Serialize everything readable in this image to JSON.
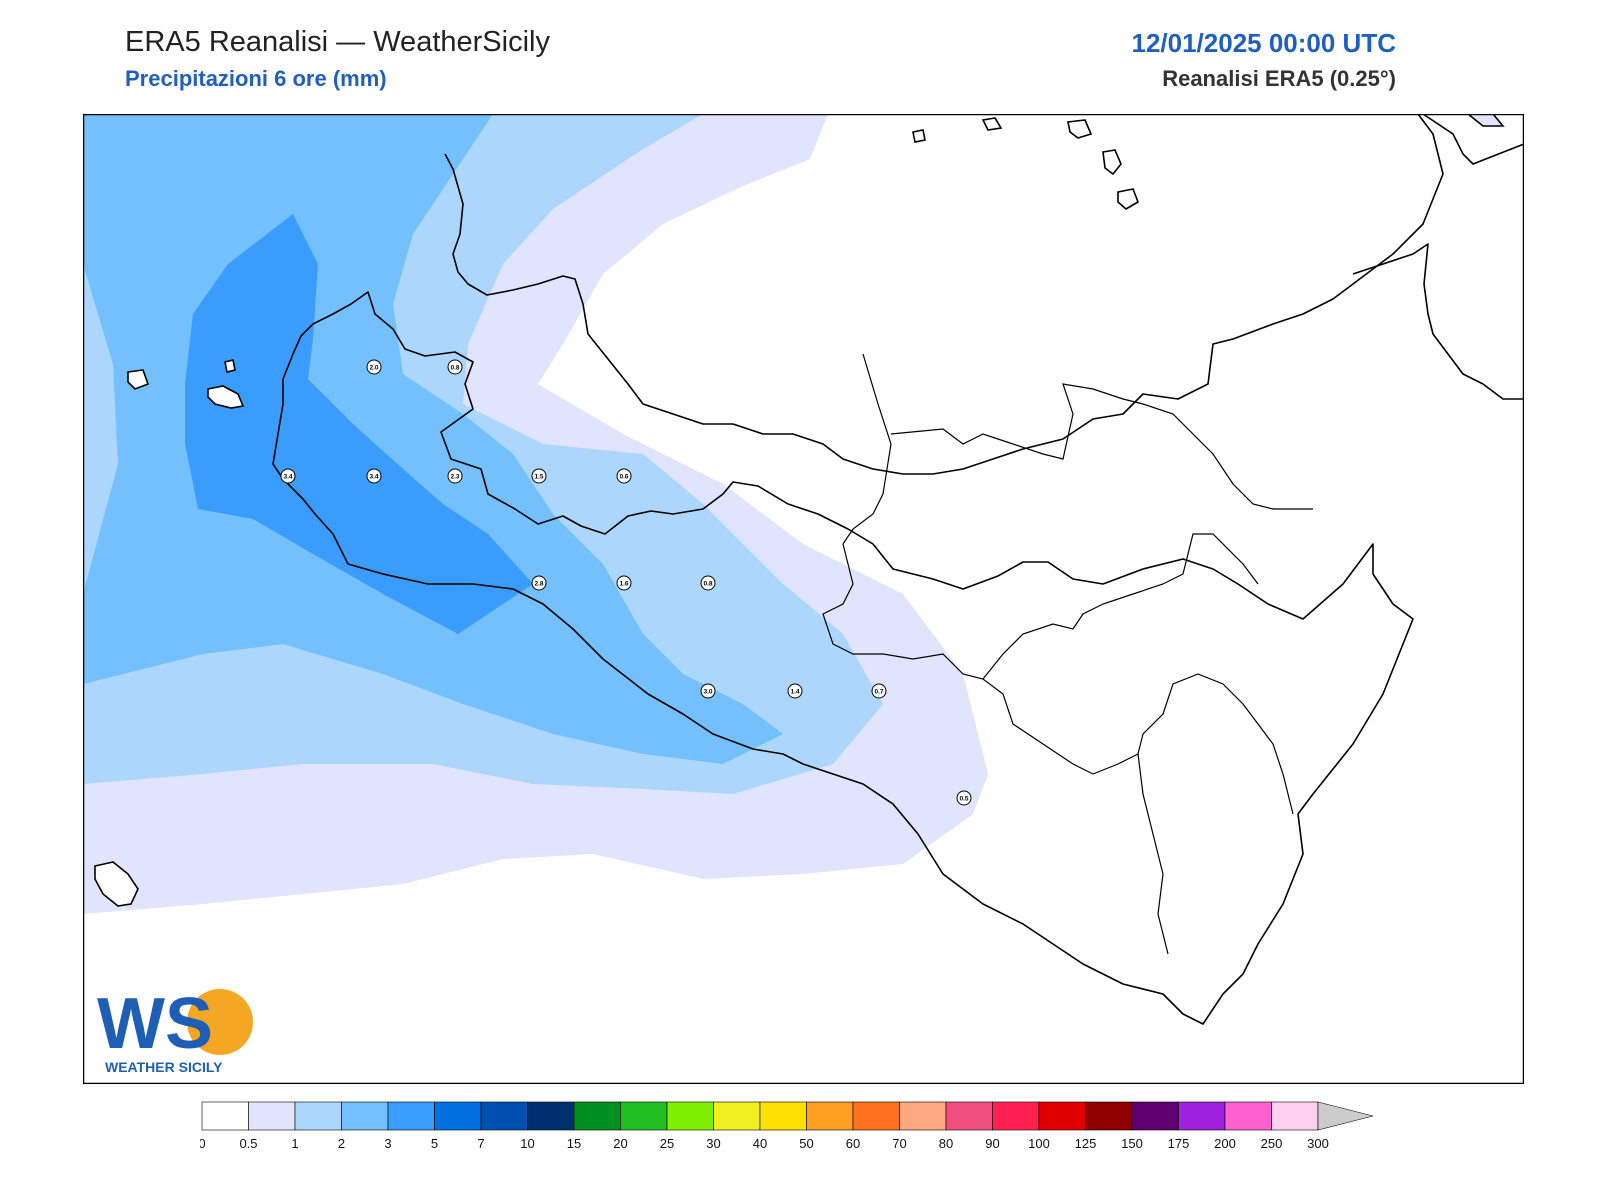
{
  "header": {
    "title": "ERA5 Reanalisi — WeatherSicily",
    "subtitle": "Precipitazioni 6 ore (mm)",
    "datetime": "12/01/2025 00:00 UTC",
    "source": "Reanalisi ERA5 (0.25°)"
  },
  "logo": {
    "text": "WEATHER SICILY",
    "letters": "WS"
  },
  "colorbar": {
    "ticks": [
      "0",
      "0.5",
      "1",
      "2",
      "3",
      "5",
      "7",
      "10",
      "15",
      "20",
      "25",
      "30",
      "40",
      "50",
      "60",
      "70",
      "80",
      "90",
      "100",
      "125",
      "150",
      "175",
      "200",
      "250",
      "300"
    ],
    "colors": [
      "#ffffff",
      "#e0e4fc",
      "#acd6fc",
      "#74c0fc",
      "#3a9cfc",
      "#0070e0",
      "#0050b0",
      "#003070",
      "#009020",
      "#20c020",
      "#80f000",
      "#f0f020",
      "#ffe000",
      "#ffa020",
      "#ff7020",
      "#ffa880",
      "#f05080",
      "#ff2050",
      "#e00000",
      "#900000",
      "#600070",
      "#a020e0",
      "#ff60d0",
      "#ffd0f0"
    ],
    "extend_color": "#cccccc"
  },
  "stations": [
    {
      "label": "2.0"
    },
    {
      "label": "0.8"
    },
    {
      "label": "3.4"
    },
    {
      "label": "3.4"
    },
    {
      "label": "2.3"
    },
    {
      "label": "1.5"
    },
    {
      "label": "0.6"
    },
    {
      "label": "2.8"
    },
    {
      "label": "1.6"
    },
    {
      "label": "0.8"
    },
    {
      "label": "3.0"
    },
    {
      "label": "1.4"
    },
    {
      "label": "0.7"
    },
    {
      "label": "0.5"
    }
  ]
}
